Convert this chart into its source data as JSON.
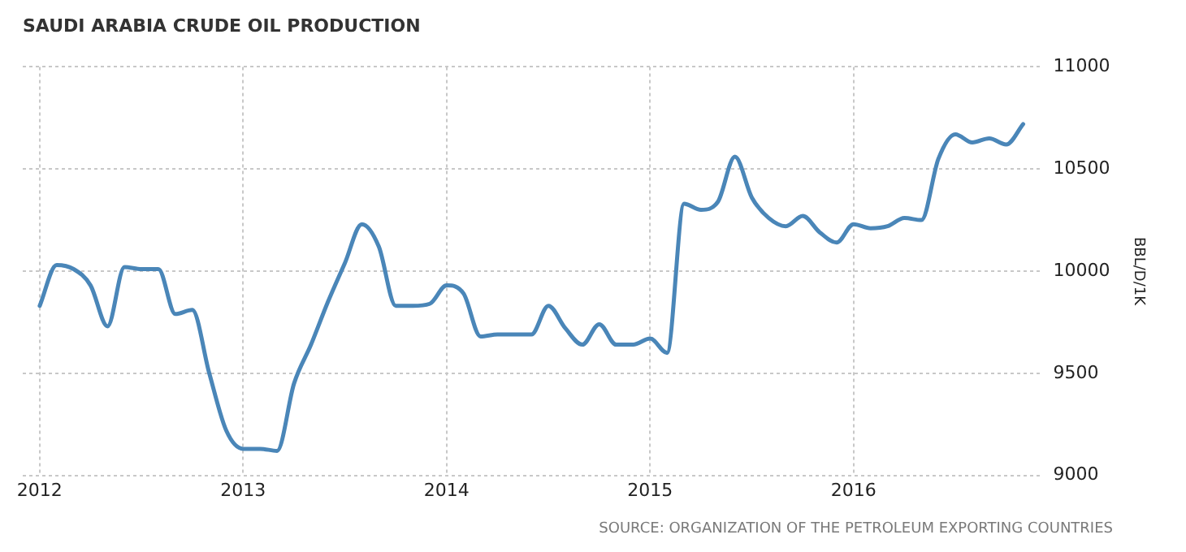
{
  "chart_data": {
    "type": "line",
    "title": "SAUDI ARABIA CRUDE OIL PRODUCTION",
    "ylabel": "BBL/D/1K",
    "annotations": [
      "SOURCE: ORGANIZATION OF THE PETROLEUM EXPORTING COUNTRIES"
    ],
    "x": [
      "2012-01",
      "2012-02",
      "2012-03",
      "2012-04",
      "2012-05",
      "2012-06",
      "2012-07",
      "2012-08",
      "2012-09",
      "2012-10",
      "2012-11",
      "2012-12",
      "2013-01",
      "2013-02",
      "2013-03",
      "2013-04",
      "2013-05",
      "2013-06",
      "2013-07",
      "2013-08",
      "2013-09",
      "2013-10",
      "2013-11",
      "2013-12",
      "2014-01",
      "2014-02",
      "2014-03",
      "2014-04",
      "2014-05",
      "2014-06",
      "2014-07",
      "2014-08",
      "2014-09",
      "2014-10",
      "2014-11",
      "2014-12",
      "2015-01",
      "2015-02",
      "2015-03",
      "2015-04",
      "2015-05",
      "2015-06",
      "2015-07",
      "2015-08",
      "2015-09",
      "2015-10",
      "2015-11",
      "2015-12",
      "2016-01",
      "2016-02",
      "2016-03",
      "2016-04",
      "2016-05",
      "2016-06",
      "2016-07",
      "2016-08",
      "2016-09",
      "2016-10",
      "2016-11"
    ],
    "series": [
      {
        "color": "#4a86b8",
        "values": [
          9830,
          10030,
          10010,
          9930,
          9730,
          10020,
          10010,
          10010,
          9790,
          9810,
          9500,
          9220,
          9130,
          9130,
          9120,
          9450,
          9640,
          9850,
          10040,
          10230,
          10120,
          9830,
          9830,
          9840,
          9930,
          9890,
          9680,
          9690,
          9690,
          9690,
          9830,
          9720,
          9640,
          9740,
          9640,
          9640,
          9670,
          9600,
          10330,
          10300,
          10340,
          10560,
          10360,
          10260,
          10220,
          10270,
          10190,
          10140,
          10230,
          10210,
          10220,
          10260,
          10250,
          10550,
          10670,
          10630,
          10650,
          10620,
          10720
        ]
      }
    ],
    "xlim": [
      "2011-12",
      "2016-12"
    ],
    "xticks": [
      "2012",
      "2013",
      "2014",
      "2015",
      "2016"
    ],
    "ylim": [
      9000,
      11000
    ],
    "yticks": [
      9000,
      9500,
      10000,
      10500,
      11000
    ],
    "grid": true,
    "legend": false,
    "marker": "none",
    "line_style": "solid"
  }
}
